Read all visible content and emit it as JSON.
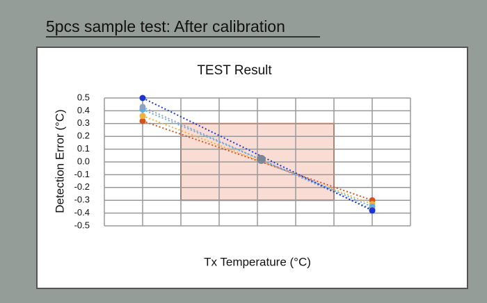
{
  "header": {
    "title": "5pcs sample test: After calibration"
  },
  "chart_data": {
    "type": "line",
    "title": "TEST Result",
    "x_label": "Tx Temperature (°C)",
    "y_label": "Detection Error (°C)",
    "xlim": [
      0,
      8
    ],
    "xticks": [
      0,
      1,
      2,
      3,
      4,
      5,
      6,
      7,
      8
    ],
    "ylim": [
      -0.5,
      0.5
    ],
    "yticks": [
      {
        "value": 0.5,
        "label": "0.5"
      },
      {
        "value": 0.4,
        "label": "0.4"
      },
      {
        "value": 0.3,
        "label": "0.3"
      },
      {
        "value": 0.2,
        "label": "0.2"
      },
      {
        "value": 0.1,
        "label": "0.1"
      },
      {
        "value": 0,
        "label": "0.0"
      },
      {
        "value": -0.1,
        "label": "-0.1"
      },
      {
        "value": -0.2,
        "label": "-0.2"
      },
      {
        "value": -0.3,
        "label": "-0.3"
      },
      {
        "value": -0.4,
        "label": "-0.4"
      },
      {
        "value": -0.5,
        "label": "-0.5"
      }
    ],
    "grid": true,
    "spec_box": {
      "x": [
        2,
        6
      ],
      "y": [
        -0.3,
        0.3
      ],
      "fill": "#f9dcd3",
      "stroke": "#c0502a"
    },
    "series": [
      {
        "color": "#d4531d",
        "x": [
          1,
          7
        ],
        "values": [
          0.32,
          -0.3
        ]
      },
      {
        "color": "#f2b13e",
        "x": [
          1,
          7
        ],
        "values": [
          0.36,
          -0.33
        ]
      },
      {
        "color": "#5aaeea",
        "x": [
          1,
          7
        ],
        "values": [
          0.41,
          -0.35
        ]
      },
      {
        "color": "#8ea2bf",
        "x": [
          1,
          7
        ],
        "values": [
          0.43,
          -0.37
        ]
      },
      {
        "color": "#1c35d4",
        "x": [
          1,
          7
        ],
        "values": [
          0.5,
          -0.38
        ]
      }
    ],
    "center_point": {
      "x": 4.1,
      "y": 0.02,
      "color": "#7b8797"
    }
  }
}
